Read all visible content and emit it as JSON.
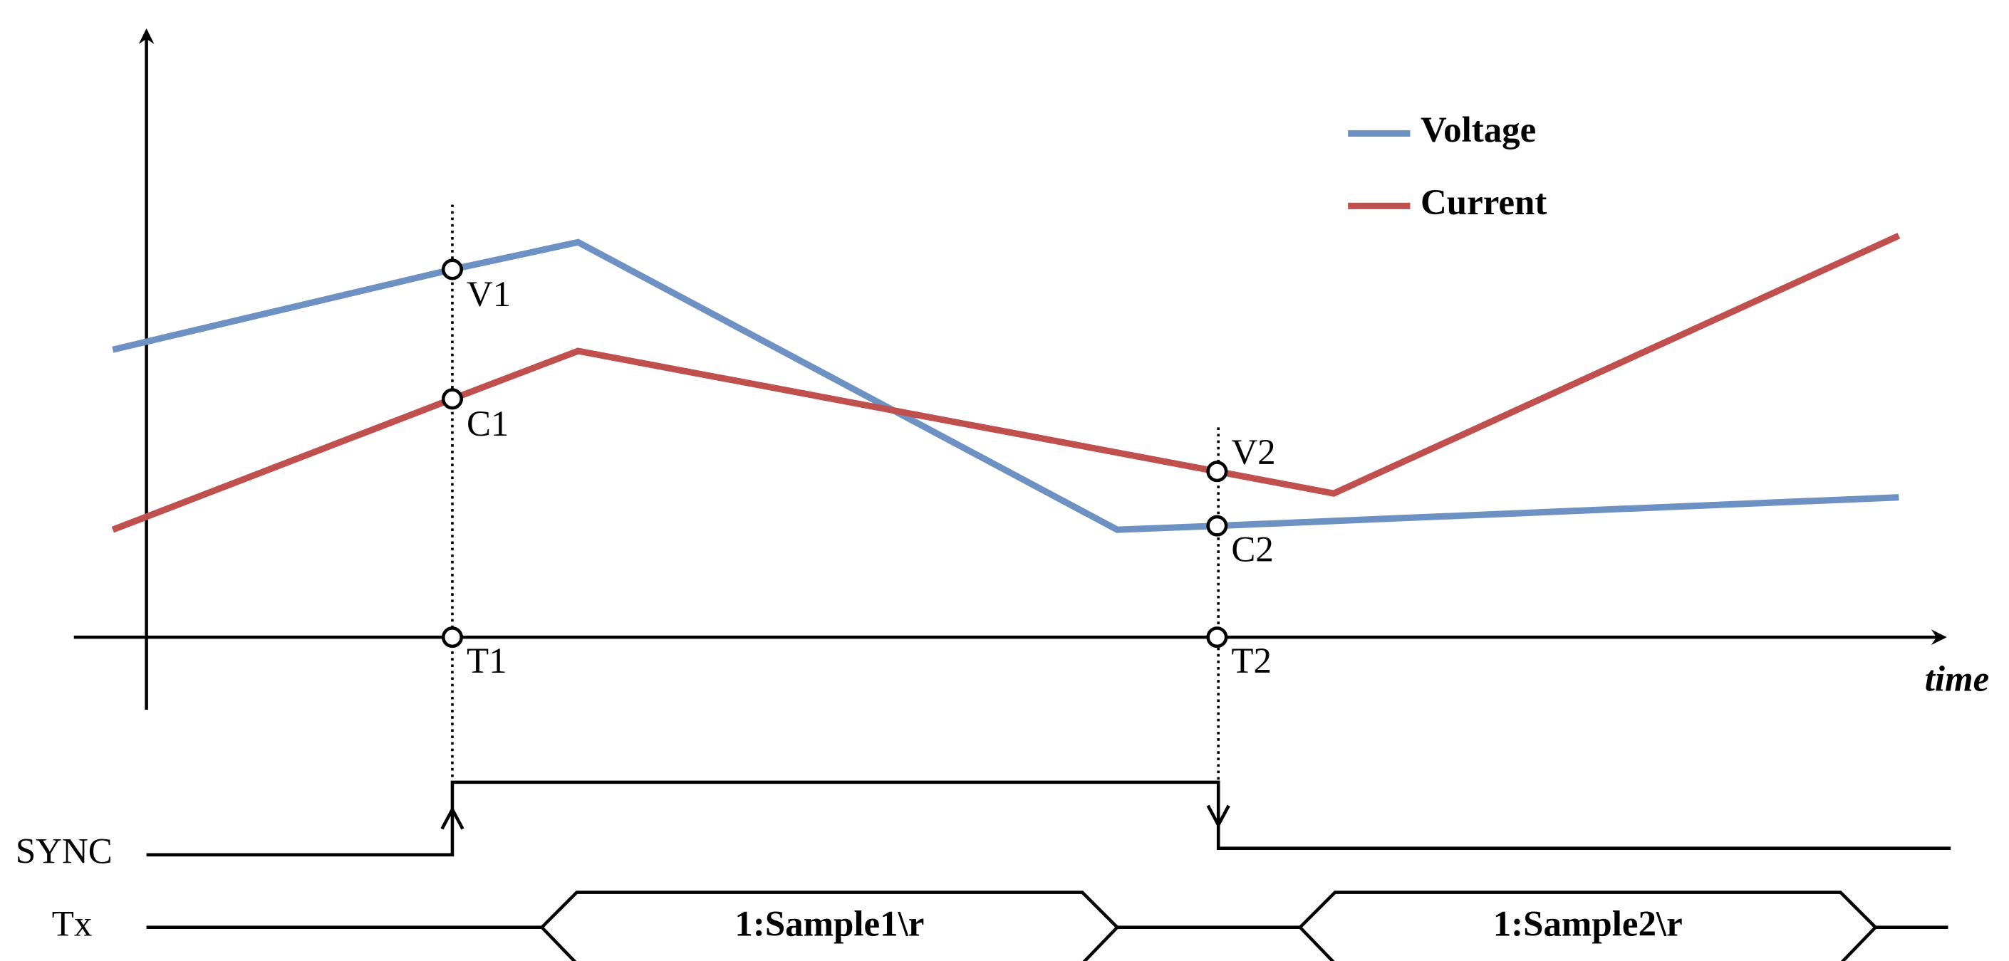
{
  "legend": {
    "items": [
      "Voltage",
      "Current"
    ]
  },
  "points": {
    "v1": "V1",
    "c1": "C1",
    "v2": "V2",
    "c2": "C2",
    "t1": "T1",
    "t2": "T2"
  },
  "axis": {
    "x_label": "time"
  },
  "signals": {
    "sync": "SYNC",
    "tx": "Tx",
    "packets": [
      "1:Sample1\\r",
      "1:Sample2\\r"
    ]
  }
}
